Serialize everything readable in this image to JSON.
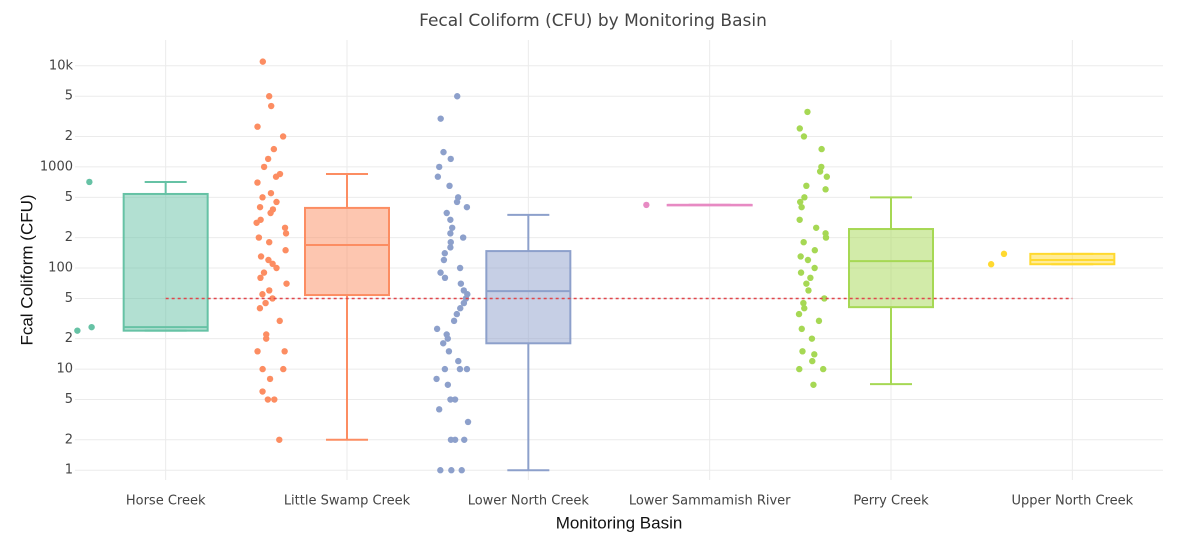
{
  "chart_data": {
    "type": "box",
    "title": "Fecal Coliform (CFU) by Monitoring Basin",
    "x_label": "Monitoring Basin",
    "y_label": "Fcal Coliform (CFU)",
    "log_y": true,
    "grid": true,
    "categories": [
      "Horse Creek",
      "Little Swamp Creek",
      "Lower North Creek",
      "Lower Sammamish River",
      "Perry Creek",
      "Upper North Creek"
    ],
    "ylim": [
      0.8,
      18000
    ],
    "yticks": [
      1,
      2,
      5,
      10,
      {
        "value": 20,
        "label": "2"
      },
      {
        "value": 50,
        "label": "5"
      },
      100,
      {
        "value": 200,
        "label": "2"
      },
      {
        "value": 500,
        "label": "5"
      },
      1000,
      {
        "value": 2000,
        "label": "2"
      },
      {
        "value": 5000,
        "label": "5"
      },
      {
        "value": 10000,
        "label": "10k"
      }
    ],
    "threshold": 50,
    "threshold_color": "#e0474c",
    "boxes": [
      {
        "color": "#66c2a5",
        "whisker_low": 24,
        "q1": 24,
        "median": 26,
        "q3": 540,
        "whisker_high": 710,
        "points": [
          710,
          26,
          24
        ]
      },
      {
        "color": "#fc8d62",
        "whisker_low": 2,
        "q1": 54,
        "median": 169,
        "q3": 393,
        "whisker_high": 851,
        "points": [
          11000,
          5000,
          4000,
          2500,
          2000,
          1500,
          1200,
          1000,
          850,
          800,
          700,
          550,
          500,
          450,
          400,
          380,
          350,
          300,
          280,
          250,
          220,
          200,
          180,
          150,
          130,
          120,
          110,
          100,
          90,
          80,
          70,
          60,
          55,
          50,
          45,
          40,
          30,
          22,
          20,
          15,
          15,
          10,
          10,
          8,
          6,
          5,
          5,
          2
        ]
      },
      {
        "color": "#8da0cb",
        "whisker_low": 1,
        "q1": 18,
        "median": 59,
        "q3": 147,
        "whisker_high": 335,
        "points": [
          5000,
          3000,
          1400,
          1200,
          1000,
          800,
          650,
          500,
          450,
          400,
          350,
          300,
          250,
          220,
          200,
          180,
          160,
          140,
          120,
          100,
          90,
          80,
          70,
          60,
          55,
          50,
          45,
          40,
          35,
          30,
          25,
          22,
          20,
          18,
          15,
          12,
          10,
          10,
          10,
          8,
          7,
          5,
          5,
          4,
          3,
          2,
          2,
          2,
          1,
          1,
          1
        ]
      },
      {
        "color": "#e78ac3",
        "whisker_low": 421,
        "q1": 421,
        "median": 421,
        "q3": 421,
        "whisker_high": 421,
        "points": [
          421
        ]
      },
      {
        "color": "#a6d854",
        "whisker_low": 7.1,
        "q1": 41,
        "median": 117,
        "q3": 243,
        "whisker_high": 500,
        "points": [
          3500,
          2400,
          2000,
          1500,
          1000,
          900,
          800,
          650,
          600,
          500,
          450,
          400,
          300,
          250,
          220,
          200,
          180,
          150,
          130,
          120,
          100,
          90,
          80,
          70,
          60,
          50,
          45,
          40,
          35,
          30,
          25,
          20,
          15,
          14,
          12,
          10,
          10,
          7
        ]
      },
      {
        "color": "#ffd92f",
        "whisker_low": 109,
        "q1": 109,
        "median": 120,
        "q3": 138,
        "whisker_high": 138,
        "points": [
          138,
          109
        ]
      }
    ]
  }
}
